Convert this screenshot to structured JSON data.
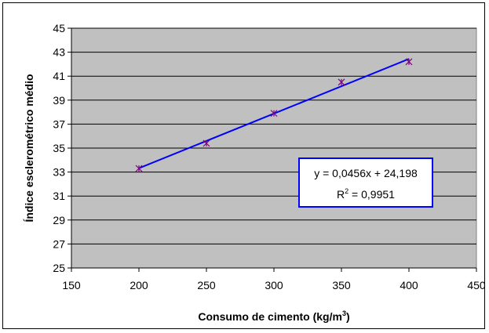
{
  "chart_data": {
    "type": "scatter",
    "title": "",
    "xlabel": "Consumo de cimento (kg/m",
    "xlabel_sup": "3",
    "xlabel_end": ")",
    "ylabel": "Índice esclerométrico médio",
    "xlim": [
      150,
      450
    ],
    "ylim": [
      25,
      45
    ],
    "xticks": [
      150,
      200,
      250,
      300,
      350,
      400,
      450
    ],
    "yticks": [
      25,
      27,
      29,
      31,
      33,
      35,
      37,
      39,
      41,
      43,
      45
    ],
    "grid": true,
    "plot_bg": "#c0c0c0",
    "marker_color": "#800080",
    "trendline_color": "#0000ff",
    "points": [
      {
        "x": 200,
        "y": 33.3
      },
      {
        "x": 250,
        "y": 35.4
      },
      {
        "x": 300,
        "y": 37.9
      },
      {
        "x": 350,
        "y": 40.5
      },
      {
        "x": 400,
        "y": 42.2
      }
    ],
    "trendline": {
      "slope": 0.0456,
      "intercept": 24.198,
      "x_from": 200,
      "x_to": 400
    },
    "annotation": {
      "equation": "y = 0,0456x + 24,198",
      "r2_prefix": "R",
      "r2_sup": "2",
      "r2_suffix": " = 0,9951",
      "border_color": "#0000ff"
    }
  }
}
